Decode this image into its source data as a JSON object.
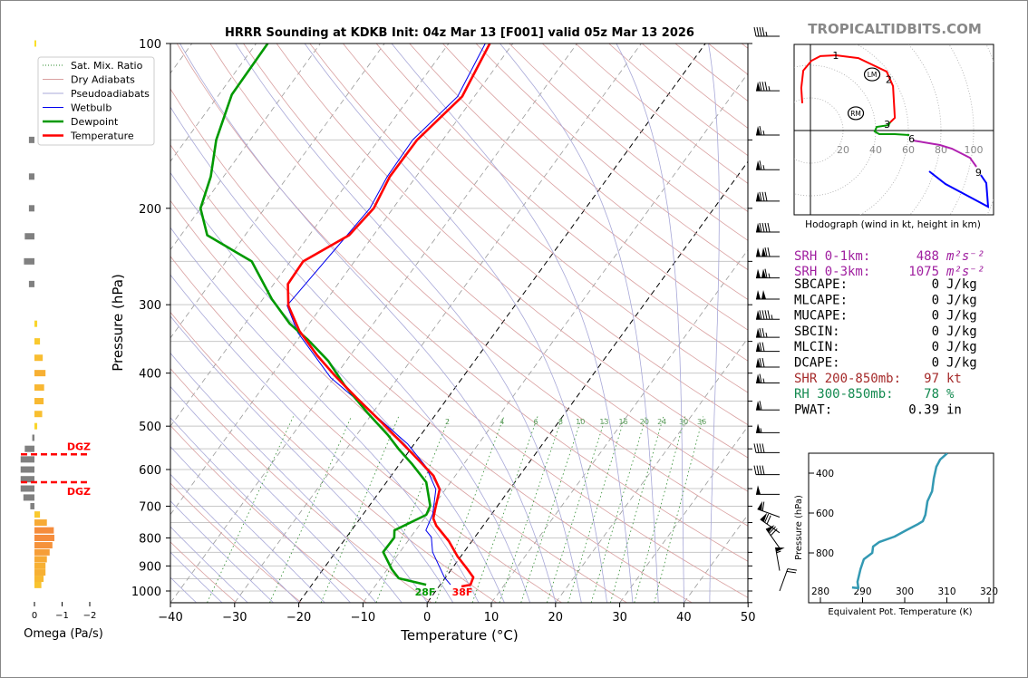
{
  "header": {
    "title": "HRRR Sounding at KDKB Init: 04z Mar 13 [F001] valid 05z Mar 13 2026",
    "brand": "TROPICALTIDBITS.COM"
  },
  "skewt": {
    "xlabel": "Temperature (°C)",
    "ylabel": "Pressure (hPa)",
    "surface_labels": {
      "dewpoint": "28F",
      "temperature": "38F"
    },
    "legend": [
      {
        "label": "Sat. Mix. Ratio",
        "color": "#2e8b2e",
        "style": "dotted"
      },
      {
        "label": "Dry Adiabats",
        "color": "#d9a0a0",
        "style": "solid"
      },
      {
        "label": "Pseudoadiabats",
        "color": "#a8a8d8",
        "style": "solid"
      },
      {
        "label": "Wetbulb",
        "color": "#0000ee",
        "style": "solid"
      },
      {
        "label": "Dewpoint",
        "color": "#009900",
        "style": "thick"
      },
      {
        "label": "Temperature",
        "color": "#ff0000",
        "style": "thick"
      }
    ]
  },
  "omega": {
    "xlabel": "Omega (Pa/s)",
    "dgz_label": "DGZ"
  },
  "hodograph": {
    "caption": "Hodograph (wind in kt, height in km)",
    "lm_label": "LM",
    "rm_label": "RM"
  },
  "thetae": {
    "xlabel": "Equivalent Pot. Temperature (K)",
    "ylabel": "Pressure (hPa)"
  },
  "stats": [
    {
      "label": "SRH 0-1km:",
      "value": "488",
      "unit": "m²s⁻²",
      "color": "#a020a0"
    },
    {
      "label": "SRH 0-3km:",
      "value": "1075",
      "unit": "m²s⁻²",
      "color": "#a020a0"
    },
    {
      "label": "SBCAPE:",
      "value": "0",
      "unit": "J/kg",
      "color": "#000000"
    },
    {
      "label": "MLCAPE:",
      "value": "0",
      "unit": "J/kg",
      "color": "#000000"
    },
    {
      "label": "MUCAPE:",
      "value": "0",
      "unit": "J/kg",
      "color": "#000000"
    },
    {
      "label": "SBCIN:",
      "value": "0",
      "unit": "J/kg",
      "color": "#000000"
    },
    {
      "label": "MLCIN:",
      "value": "0",
      "unit": "J/kg",
      "color": "#000000"
    },
    {
      "label": "DCAPE:",
      "value": "0",
      "unit": "J/kg",
      "color": "#000000"
    },
    {
      "label": "SHR 200-850mb:",
      "value": "97",
      "unit": "kt",
      "color": "#a52a2a"
    },
    {
      "label": "RH 300-850mb:",
      "value": "78",
      "unit": "%",
      "color": "#148a50"
    },
    {
      "label": "PWAT:",
      "value": "0.39",
      "unit": "in",
      "color": "#000000"
    }
  ],
  "chart_data": [
    {
      "name": "skew-t",
      "type": "line",
      "xlim": [
        -40,
        50
      ],
      "ylim": [
        1050,
        100
      ],
      "x_ticks": [
        "−40",
        "−30",
        "−20",
        "−10",
        "0",
        "10",
        "20",
        "30",
        "40",
        "50"
      ],
      "x_tick_values": [
        -40,
        -30,
        -20,
        -10,
        0,
        10,
        20,
        30,
        40,
        50
      ],
      "p_labels": [
        "100",
        "200",
        "300",
        "400",
        "500",
        "600",
        "700",
        "800",
        "900",
        "1000"
      ],
      "p_label_values": [
        100,
        200,
        300,
        400,
        500,
        600,
        700,
        800,
        900,
        1000
      ],
      "mixing_ratio_labels": [
        "2",
        "4",
        "6",
        "8",
        "10",
        "13",
        "16",
        "20",
        "24",
        "30",
        "36"
      ],
      "mixing_ratio_values": [
        2,
        4,
        6,
        8,
        10,
        13,
        16,
        20,
        24,
        30,
        36
      ],
      "series": [
        {
          "name": "Temperature",
          "color": "#ff0000",
          "points": [
            [
              981,
              3.5
            ],
            [
              974,
              4.7
            ],
            [
              944,
              4.3
            ],
            [
              913,
              2.5
            ],
            [
              865,
              -0.5
            ],
            [
              811,
              -3.6
            ],
            [
              760,
              -7.3
            ],
            [
              737,
              -8.6
            ],
            [
              707,
              -9.4
            ],
            [
              652,
              -10.9
            ],
            [
              616,
              -13.4
            ],
            [
              554,
              -20.0
            ],
            [
              490,
              -27.8
            ],
            [
              446,
              -33.9
            ],
            [
              405,
              -40.0
            ],
            [
              371,
              -45.2
            ],
            [
              335,
              -50.7
            ],
            [
              301,
              -55.3
            ],
            [
              275,
              -57.8
            ],
            [
              250,
              -58.0
            ],
            [
              224,
              -53.8
            ],
            [
              200,
              -53.0
            ],
            [
              175,
              -54.1
            ],
            [
              150,
              -54.0
            ],
            [
              125,
              -51.9
            ],
            [
              100,
              -53.6
            ]
          ]
        },
        {
          "name": "Dewpoint",
          "color": "#009900",
          "points": [
            [
              974,
              -2.2
            ],
            [
              948,
              -7.2
            ],
            [
              913,
              -9.3
            ],
            [
              849,
              -12.6
            ],
            [
              799,
              -12.5
            ],
            [
              775,
              -13.3
            ],
            [
              726,
              -10.1
            ],
            [
              699,
              -10.5
            ],
            [
              633,
              -13.8
            ],
            [
              587,
              -18.0
            ],
            [
              550,
              -21.9
            ],
            [
              519,
              -25.1
            ],
            [
              472,
              -30.9
            ],
            [
              421,
              -37.5
            ],
            [
              380,
              -42.8
            ],
            [
              348,
              -48.3
            ],
            [
              325,
              -53.0
            ],
            [
              293,
              -58.6
            ],
            [
              250,
              -66.0
            ],
            [
              224,
              -75.9
            ],
            [
              200,
              -80.0
            ],
            [
              175,
              -82.0
            ],
            [
              150,
              -85.3
            ],
            [
              124,
              -88.0
            ],
            [
              100,
              -88.2
            ]
          ]
        },
        {
          "name": "Wetbulb",
          "color": "#0000ee",
          "points": [
            [
              974,
              1.6
            ],
            [
              944,
              -0.2
            ],
            [
              849,
              -4.9
            ],
            [
              797,
              -6.8
            ],
            [
              775,
              -8.4
            ],
            [
              723,
              -9.2
            ],
            [
              652,
              -11.5
            ],
            [
              593,
              -15.6
            ],
            [
              539,
              -21.0
            ],
            [
              487,
              -28.0
            ],
            [
              408,
              -40.5
            ],
            [
              337,
              -50.8
            ],
            [
              301,
              -55.5
            ],
            [
              224,
              -54.1
            ],
            [
              200,
              -53.6
            ],
            [
              175,
              -54.5
            ],
            [
              150,
              -54.7
            ],
            [
              125,
              -52.6
            ],
            [
              100,
              -54.3
            ]
          ]
        }
      ],
      "wind_barbs": [
        {
          "p": 97,
          "dir": 270,
          "kt": 45
        },
        {
          "p": 122,
          "dir": 270,
          "kt": 85
        },
        {
          "p": 147,
          "dir": 270,
          "kt": 65
        },
        {
          "p": 170,
          "dir": 270,
          "kt": 65
        },
        {
          "p": 194,
          "dir": 270,
          "kt": 80
        },
        {
          "p": 221,
          "dir": 270,
          "kt": 90
        },
        {
          "p": 245,
          "dir": 270,
          "kt": 120
        },
        {
          "p": 268,
          "dir": 270,
          "kt": 115
        },
        {
          "p": 293,
          "dir": 270,
          "kt": 100
        },
        {
          "p": 319,
          "dir": 270,
          "kt": 95
        },
        {
          "p": 344,
          "dir": 270,
          "kt": 75
        },
        {
          "p": 365,
          "dir": 270,
          "kt": 70
        },
        {
          "p": 390,
          "dir": 270,
          "kt": 70
        },
        {
          "p": 417,
          "dir": 270,
          "kt": 65
        },
        {
          "p": 467,
          "dir": 270,
          "kt": 60
        },
        {
          "p": 514,
          "dir": 270,
          "kt": 55
        },
        {
          "p": 559,
          "dir": 270,
          "kt": 40
        },
        {
          "p": 613,
          "dir": 270,
          "kt": 40
        },
        {
          "p": 666,
          "dir": 270,
          "kt": 50
        },
        {
          "p": 733,
          "dir": 250,
          "kt": 60
        },
        {
          "p": 783,
          "dir": 235,
          "kt": 70
        },
        {
          "p": 835,
          "dir": 215,
          "kt": 70
        },
        {
          "p": 918,
          "dir": 190,
          "kt": 55
        },
        {
          "p": 1000,
          "dir": 160,
          "kt": 20
        }
      ]
    },
    {
      "name": "omega",
      "type": "bar",
      "xlabel": "Omega (Pa/s)",
      "x_ticks": [
        "0",
        "−1",
        "−2"
      ],
      "x_tick_values": [
        0,
        -1,
        -2
      ],
      "dgz_pressures": [
        563,
        633
      ],
      "levels": [
        100,
        150,
        175,
        200,
        225,
        250,
        275,
        325,
        350,
        375,
        400,
        425,
        450,
        475,
        500,
        525,
        550,
        575,
        600,
        625,
        650,
        675,
        700,
        725,
        750,
        775,
        800,
        825,
        850,
        875,
        900,
        925,
        950,
        975
      ],
      "values": [
        -0.02,
        0.2,
        0.2,
        0.2,
        0.35,
        0.38,
        0.2,
        -0.1,
        -0.2,
        -0.3,
        -0.4,
        -0.35,
        -0.33,
        -0.28,
        -0.1,
        0.08,
        0.35,
        0.5,
        0.5,
        0.5,
        0.5,
        0.4,
        0.15,
        -0.2,
        -0.45,
        -0.7,
        -0.72,
        -0.65,
        -0.55,
        -0.45,
        -0.4,
        -0.4,
        -0.33,
        -0.25
      ]
    },
    {
      "name": "hodograph",
      "type": "line",
      "ring_labels": [
        "20",
        "40",
        "60",
        "80",
        "100"
      ],
      "ring_values": [
        20,
        40,
        60,
        80,
        100
      ],
      "segments": [
        {
          "layer": "0-3 km",
          "color": "#ff0000",
          "uv": [
            [
              -5,
              16.7
            ],
            [
              -5.6,
              26.1
            ],
            [
              -4.4,
              36.7
            ],
            [
              0.6,
              42.8
            ],
            [
              6.1,
              45.6
            ],
            [
              15.6,
              46.1
            ],
            [
              29.4,
              44.4
            ],
            [
              46.7,
              36.1
            ],
            [
              50.6,
              27.2
            ],
            [
              51.7,
              7.8
            ],
            [
              48.9,
              5
            ]
          ]
        },
        {
          "layer": "3-6 km",
          "color": "#009900",
          "uv": [
            [
              48.9,
              5
            ],
            [
              47.8,
              3.3
            ],
            [
              40.6,
              2.2
            ],
            [
              39.4,
              -0.6
            ],
            [
              42.2,
              -2.2
            ],
            [
              51.7,
              -2.2
            ],
            [
              60.6,
              -2.8
            ]
          ]
        },
        {
          "layer": "6-9 km",
          "color": "#b020b0",
          "uv": [
            [
              62.8,
              -6.1
            ],
            [
              79.4,
              -8.9
            ],
            [
              86.7,
              -11.1
            ],
            [
              97.8,
              -16.7
            ],
            [
              101.7,
              -22.2
            ]
          ]
        },
        {
          "layer": "9+ km",
          "color": "#0000ff",
          "uv": [
            [
              104.4,
              -27.2
            ],
            [
              107.8,
              -32.2
            ],
            [
              108.9,
              -46.7
            ],
            [
              82.8,
              -32.8
            ],
            [
              72.8,
              -25
            ]
          ]
        }
      ],
      "height_labels": [
        {
          "text": "1",
          "uv": [
            15.5,
            46
          ]
        },
        {
          "text": "2",
          "uv": [
            48,
            31.5
          ]
        },
        {
          "text": "3",
          "uv": [
            47,
            4
          ]
        },
        {
          "text": "6",
          "uv": [
            62,
            -5
          ]
        },
        {
          "text": "9",
          "uv": [
            103,
            -25.5
          ]
        }
      ],
      "lm": [
        37.8,
        34.4
      ],
      "rm": [
        27.8,
        10.6
      ]
    },
    {
      "name": "theta-e",
      "type": "line",
      "xlabel": "Equivalent Pot. Temperature (K)",
      "ylabel": "Pressure (hPa)",
      "x_ticks": [
        "280",
        "290",
        "300",
        "310",
        "320"
      ],
      "x_tick_values": [
        280,
        290,
        300,
        310,
        320
      ],
      "y_ticks": [
        "400",
        "600",
        "800"
      ],
      "y_tick_values": [
        400,
        600,
        800
      ],
      "color": "#3399b3",
      "points": [
        [
          300,
          310.1
        ],
        [
          332,
          308.4
        ],
        [
          368,
          307.5
        ],
        [
          427,
          306.9
        ],
        [
          491,
          306.5
        ],
        [
          541,
          305.4
        ],
        [
          609,
          304.9
        ],
        [
          641,
          304.3
        ],
        [
          655,
          303.2
        ],
        [
          686,
          300.4
        ],
        [
          718,
          297.6
        ],
        [
          745,
          294.0
        ],
        [
          768,
          292.5
        ],
        [
          800,
          292.3
        ],
        [
          832,
          290.3
        ],
        [
          882,
          289.5
        ],
        [
          945,
          288.8
        ],
        [
          977,
          289.0
        ],
        [
          973,
          287.5
        ]
      ]
    }
  ]
}
